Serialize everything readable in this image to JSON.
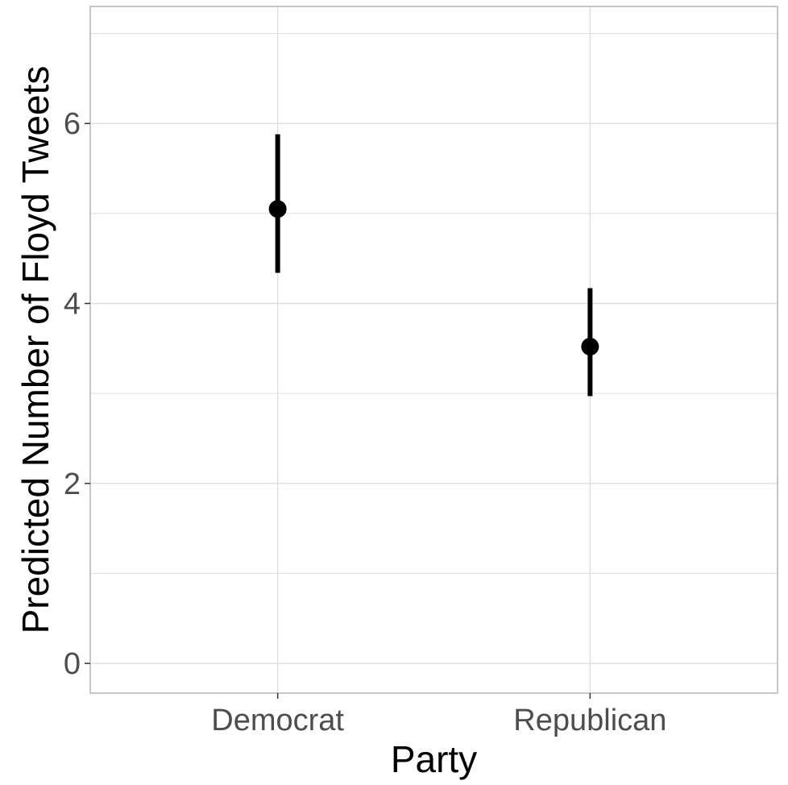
{
  "chart_data": {
    "type": "pointrange",
    "title": "",
    "xlabel": "Party",
    "ylabel": "Predicted Number of Floyd Tweets",
    "categories": [
      "Democrat",
      "Republican"
    ],
    "values": [
      5.05,
      3.52
    ],
    "lower": [
      4.34,
      2.97
    ],
    "upper": [
      5.88,
      4.17
    ],
    "ylim": [
      -0.33,
      7.3
    ],
    "yticks": [
      0,
      2,
      4,
      6
    ],
    "yticks_labels": [
      "0",
      "2",
      "4",
      "6"
    ],
    "grid": true,
    "legend": "none",
    "colors": {
      "point": "#000000",
      "grid": "#dedede",
      "border": "#b3b3b3",
      "tick_text": "#4d4d4d",
      "title_text": "#000000"
    }
  }
}
